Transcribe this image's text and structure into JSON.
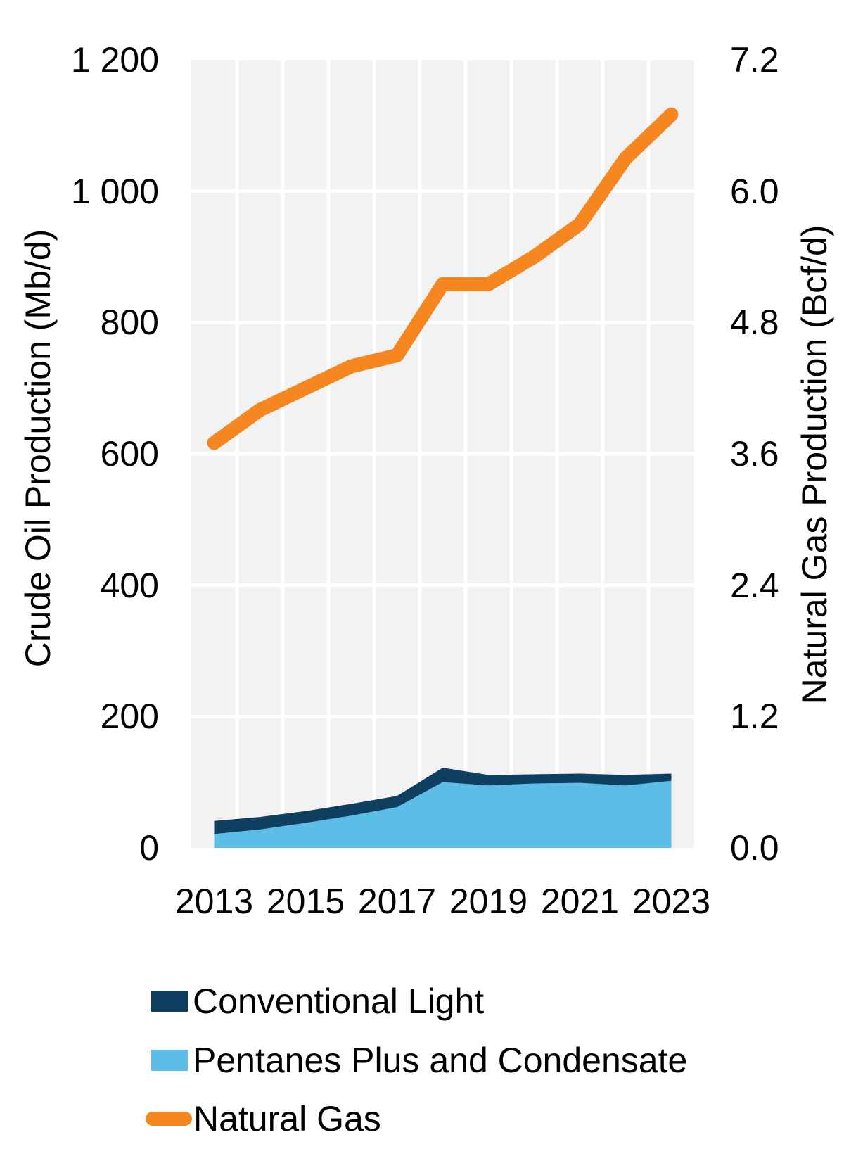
{
  "chart_data": {
    "type": "combo: stacked area (left axis) + line (right axis)",
    "x": [
      2013,
      2014,
      2015,
      2016,
      2017,
      2018,
      2019,
      2020,
      2021,
      2022,
      2023
    ],
    "series": [
      {
        "name": "Conventional Light",
        "chart": "area",
        "stack": "crude",
        "stack_order": 2,
        "axis": "left",
        "color": "#0E3E60",
        "values": [
          20,
          19,
          18,
          18,
          17,
          22,
          16,
          14,
          14,
          16,
          11
        ]
      },
      {
        "name": "Pentanes Plus and Condensate",
        "chart": "area",
        "stack": "crude",
        "stack_order": 1,
        "axis": "left",
        "color": "#5CBDE6",
        "values": [
          21,
          28,
          38,
          49,
          62,
          100,
          95,
          98,
          99,
          95,
          102
        ]
      },
      {
        "name": "Natural Gas",
        "chart": "line",
        "axis": "right",
        "color": "#F6861F",
        "values": [
          3.7,
          4.0,
          4.2,
          4.4,
          4.5,
          5.15,
          5.15,
          5.4,
          5.7,
          6.3,
          6.7
        ]
      }
    ],
    "left_axis": {
      "title": "Crude Oil Production (Mb/d)",
      "ticks": [
        "1 200",
        "1 000",
        "800",
        "600",
        "400",
        "200",
        "0"
      ],
      "tick_values": [
        1200,
        1000,
        800,
        600,
        400,
        200,
        0
      ],
      "range": [
        0,
        1200
      ]
    },
    "right_axis": {
      "title": "Natural Gas Production (Bcf/d)",
      "ticks": [
        "7.2",
        "6.0",
        "4.8",
        "3.6",
        "2.4",
        "1.2",
        "0.0"
      ],
      "tick_values": [
        7.2,
        6.0,
        4.8,
        3.6,
        2.4,
        1.2,
        0.0
      ],
      "range": [
        0,
        7.2
      ]
    },
    "x_axis": {
      "tick_labels": [
        "2013",
        "2015",
        "2017",
        "2019",
        "2021",
        "2023"
      ],
      "tick_years": [
        2013,
        2015,
        2017,
        2019,
        2021,
        2023
      ]
    },
    "grid": true,
    "legend_position": "bottom-left",
    "panel_color": "#F2F2F2",
    "gridline_color": "#FFFFFF",
    "line_width": 20
  }
}
